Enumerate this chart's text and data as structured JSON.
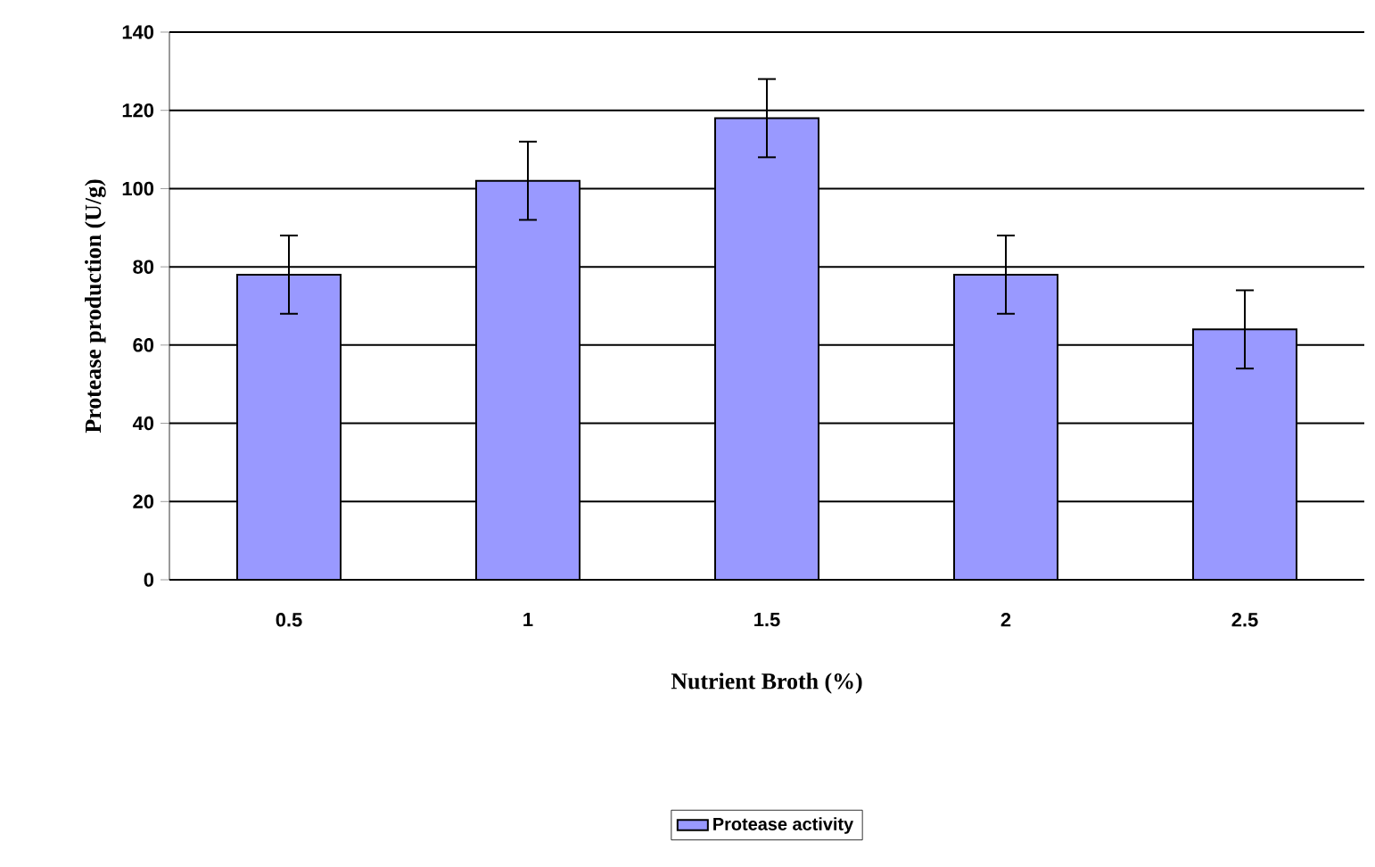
{
  "chart_data": {
    "type": "bar",
    "xlabel": "Nutrient Broth (%)",
    "ylabel": "Protease production (U/g)",
    "categories": [
      "0.5",
      "1",
      "1.5",
      "2",
      "2.5"
    ],
    "series": [
      {
        "name": "Protease activity",
        "color": "#9999ff",
        "values": [
          78,
          102,
          118,
          78,
          64
        ],
        "errors": [
          10,
          10,
          10,
          10,
          10
        ]
      }
    ],
    "ylim": [
      0,
      140
    ],
    "yticks": [
      0,
      20,
      40,
      60,
      80,
      100,
      120,
      140
    ],
    "grid": "y",
    "legend": "bottom"
  }
}
